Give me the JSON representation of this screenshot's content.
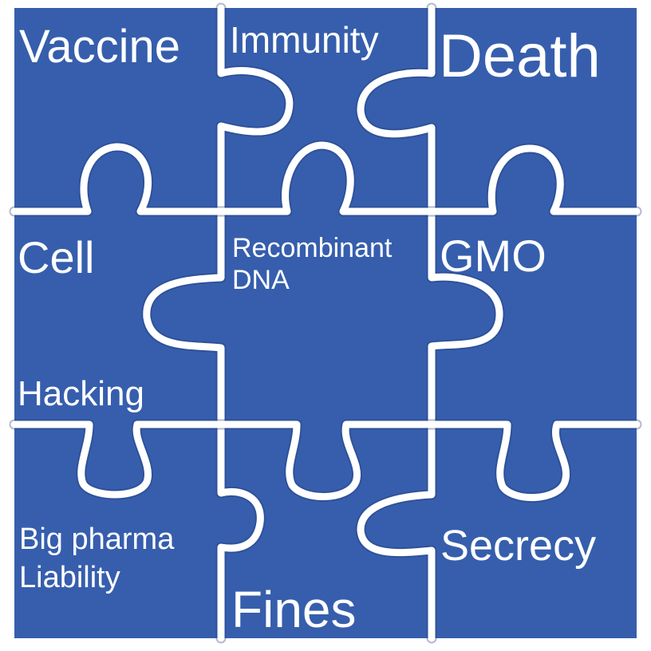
{
  "puzzle": {
    "background_color": "#ffffff",
    "piece_color": "#365ead",
    "seam_color": "#ffffff",
    "pieces": [
      {
        "lines": [
          "Vaccine"
        ]
      },
      {
        "lines": [
          "Immunity"
        ]
      },
      {
        "lines": [
          "Death"
        ]
      },
      {
        "lines": [
          "Cell"
        ]
      },
      {
        "lines": [
          "Recombinant",
          "DNA"
        ]
      },
      {
        "lines": [
          "GMO"
        ]
      },
      {
        "lines": [
          "Hacking"
        ]
      },
      {
        "lines": [
          "Big pharma",
          "Liability"
        ]
      },
      {
        "lines": [
          "Fines"
        ]
      },
      {
        "lines": [
          "Secrecy"
        ]
      }
    ]
  }
}
